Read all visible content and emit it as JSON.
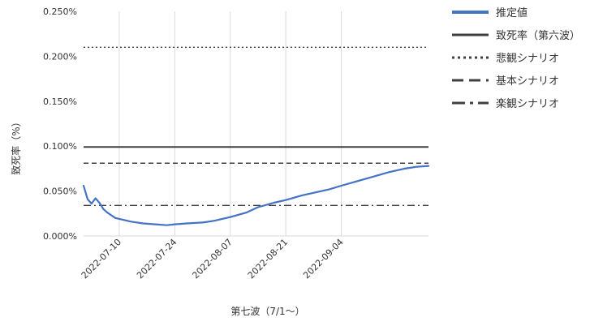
{
  "chart_data": {
    "type": "line",
    "xlabel": "第七波（7/1～）",
    "ylabel": "致死率（%）",
    "x_range": [
      "2022-07-01",
      "2022-09-26"
    ],
    "x_ticks": [
      "2022-07-10",
      "2022-07-24",
      "2022-08-07",
      "2022-08-21",
      "2022-09-04"
    ],
    "ylim": [
      0,
      0.25
    ],
    "y_ticks": [
      "0.000%",
      "0.050%",
      "0.100%",
      "0.150%",
      "0.200%",
      "0.250%"
    ],
    "y_tick_values": [
      0,
      0.05,
      0.1,
      0.15,
      0.2,
      0.25
    ],
    "grid": "vertical",
    "legend_position": "right",
    "series": [
      {
        "name": "推定値",
        "color": "#4472c4",
        "style": "solid",
        "x": [
          "2022-07-01",
          "2022-07-02",
          "2022-07-03",
          "2022-07-04",
          "2022-07-05",
          "2022-07-06",
          "2022-07-07",
          "2022-07-08",
          "2022-07-09",
          "2022-07-10",
          "2022-07-13",
          "2022-07-16",
          "2022-07-19",
          "2022-07-22",
          "2022-07-24",
          "2022-07-27",
          "2022-07-31",
          "2022-08-03",
          "2022-08-07",
          "2022-08-11",
          "2022-08-14",
          "2022-08-18",
          "2022-08-21",
          "2022-08-25",
          "2022-08-29",
          "2022-09-01",
          "2022-09-04",
          "2022-09-08",
          "2022-09-12",
          "2022-09-16",
          "2022-09-20",
          "2022-09-23",
          "2022-09-26"
        ],
        "y": [
          0.056,
          0.041,
          0.036,
          0.042,
          0.037,
          0.03,
          0.026,
          0.023,
          0.02,
          0.019,
          0.016,
          0.014,
          0.013,
          0.012,
          0.013,
          0.014,
          0.015,
          0.017,
          0.021,
          0.026,
          0.032,
          0.037,
          0.04,
          0.045,
          0.049,
          0.052,
          0.056,
          0.061,
          0.066,
          0.071,
          0.075,
          0.077,
          0.078
        ]
      },
      {
        "name": "致死率（第六波）",
        "color": "#404040",
        "style": "solid",
        "value": 0.099
      },
      {
        "name": "悲観シナリオ",
        "color": "#404040",
        "style": "dotted",
        "value": 0.21
      },
      {
        "name": "基本シナリオ",
        "color": "#404040",
        "style": "dashed",
        "value": 0.081
      },
      {
        "name": "楽観シナリオ",
        "color": "#404040",
        "style": "dash-dot",
        "value": 0.034
      }
    ]
  }
}
